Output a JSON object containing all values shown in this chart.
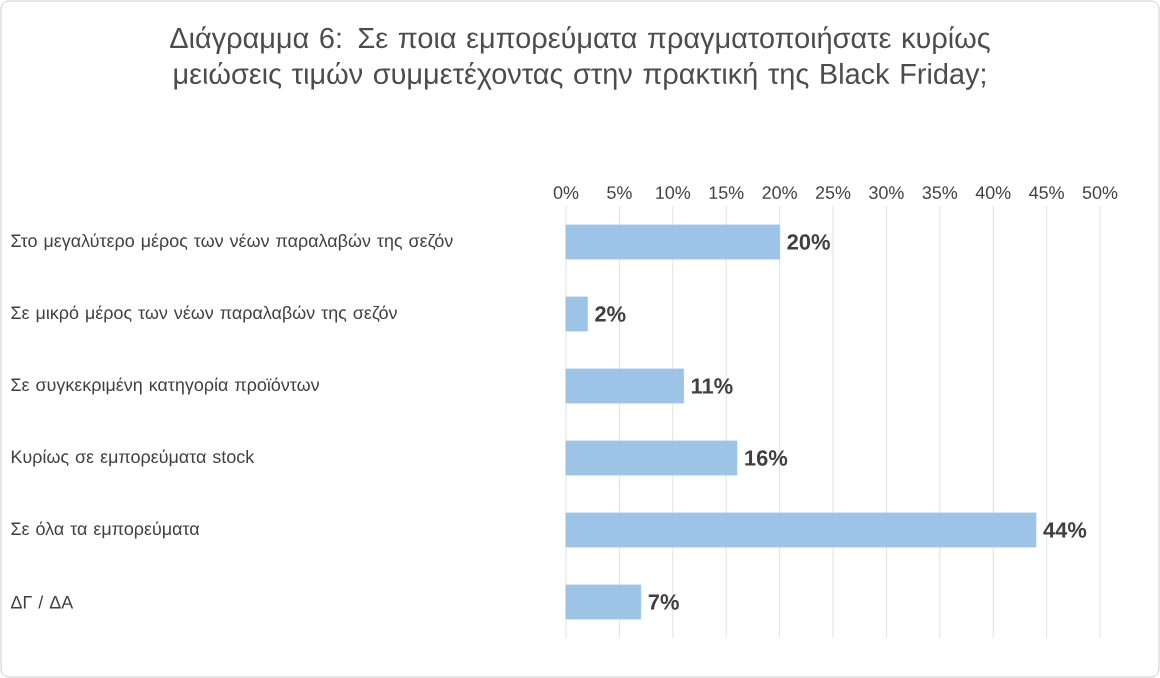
{
  "chart_data": {
    "type": "bar",
    "orientation": "horizontal",
    "title": "Διάγραμμα 6: Σε ποια εμπορεύματα πραγματοποιήσατε κυρίως μειώσεις τιμών συμμετέχοντας στην πρακτική της Black Friday;",
    "categories": [
      "Στο μεγαλύτερο μέρος των νέων παραλαβών της σεζόν",
      "Σε μικρό μέρος των νέων παραλαβών της σεζόν",
      "Σε συγκεκριμένη κατηγορία προϊόντων",
      "Κυρίως σε εμπορεύματα stock",
      "Σε όλα τα εμπορεύματα",
      "ΔΓ / ΔΑ"
    ],
    "values": [
      20,
      2,
      11,
      16,
      44,
      7
    ],
    "value_labels": [
      "20%",
      "2%",
      "11%",
      "16%",
      "44%",
      "7%"
    ],
    "color": "#9dc3e6",
    "xlim": [
      0,
      50
    ],
    "xticks": [
      {
        "value": 0,
        "label": "0%"
      },
      {
        "value": 5,
        "label": "5%"
      },
      {
        "value": 10,
        "label": "10%"
      },
      {
        "value": 15,
        "label": "15%"
      },
      {
        "value": 20,
        "label": "20%"
      },
      {
        "value": 25,
        "label": "25%"
      },
      {
        "value": 30,
        "label": "30%"
      },
      {
        "value": 35,
        "label": "35%"
      },
      {
        "value": 40,
        "label": "40%"
      },
      {
        "value": 45,
        "label": "45%"
      },
      {
        "value": 50,
        "label": "50%"
      }
    ],
    "grid": "x"
  }
}
